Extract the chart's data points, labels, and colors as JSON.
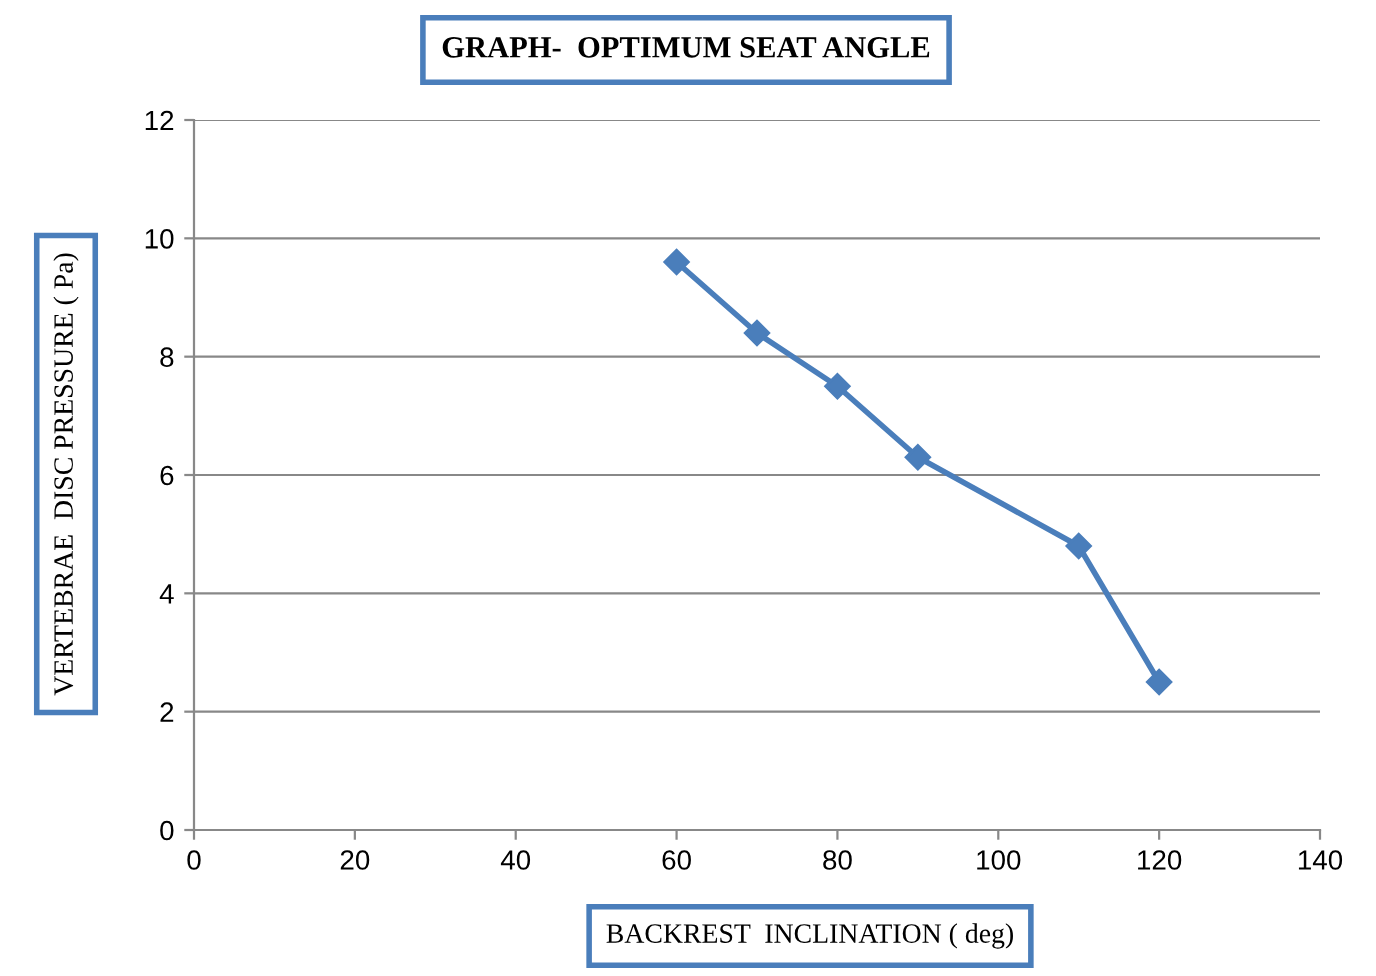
{
  "chart_data": {
    "type": "line",
    "title": "GRAPH-  OPTIMUM SEAT ANGLE",
    "xlabel": "BACKREST  INCLINATION ( deg)",
    "ylabel": "VERTEBRAE  DISC PRESSURE ( Pa)",
    "x": [
      60,
      70,
      80,
      90,
      110,
      120
    ],
    "series": [
      {
        "color": "#4a7ebb",
        "values": [
          9.6,
          8.4,
          7.5,
          6.3,
          4.8,
          2.5
        ]
      }
    ],
    "xlim": [
      0,
      140
    ],
    "xticks": [
      0,
      20,
      40,
      60,
      80,
      100,
      120,
      140
    ],
    "ylim": [
      0,
      12
    ],
    "yticks": [
      0,
      2,
      4,
      6,
      8,
      10,
      12
    ],
    "grid": "y",
    "marker": "diamond",
    "line_style": "solid"
  }
}
